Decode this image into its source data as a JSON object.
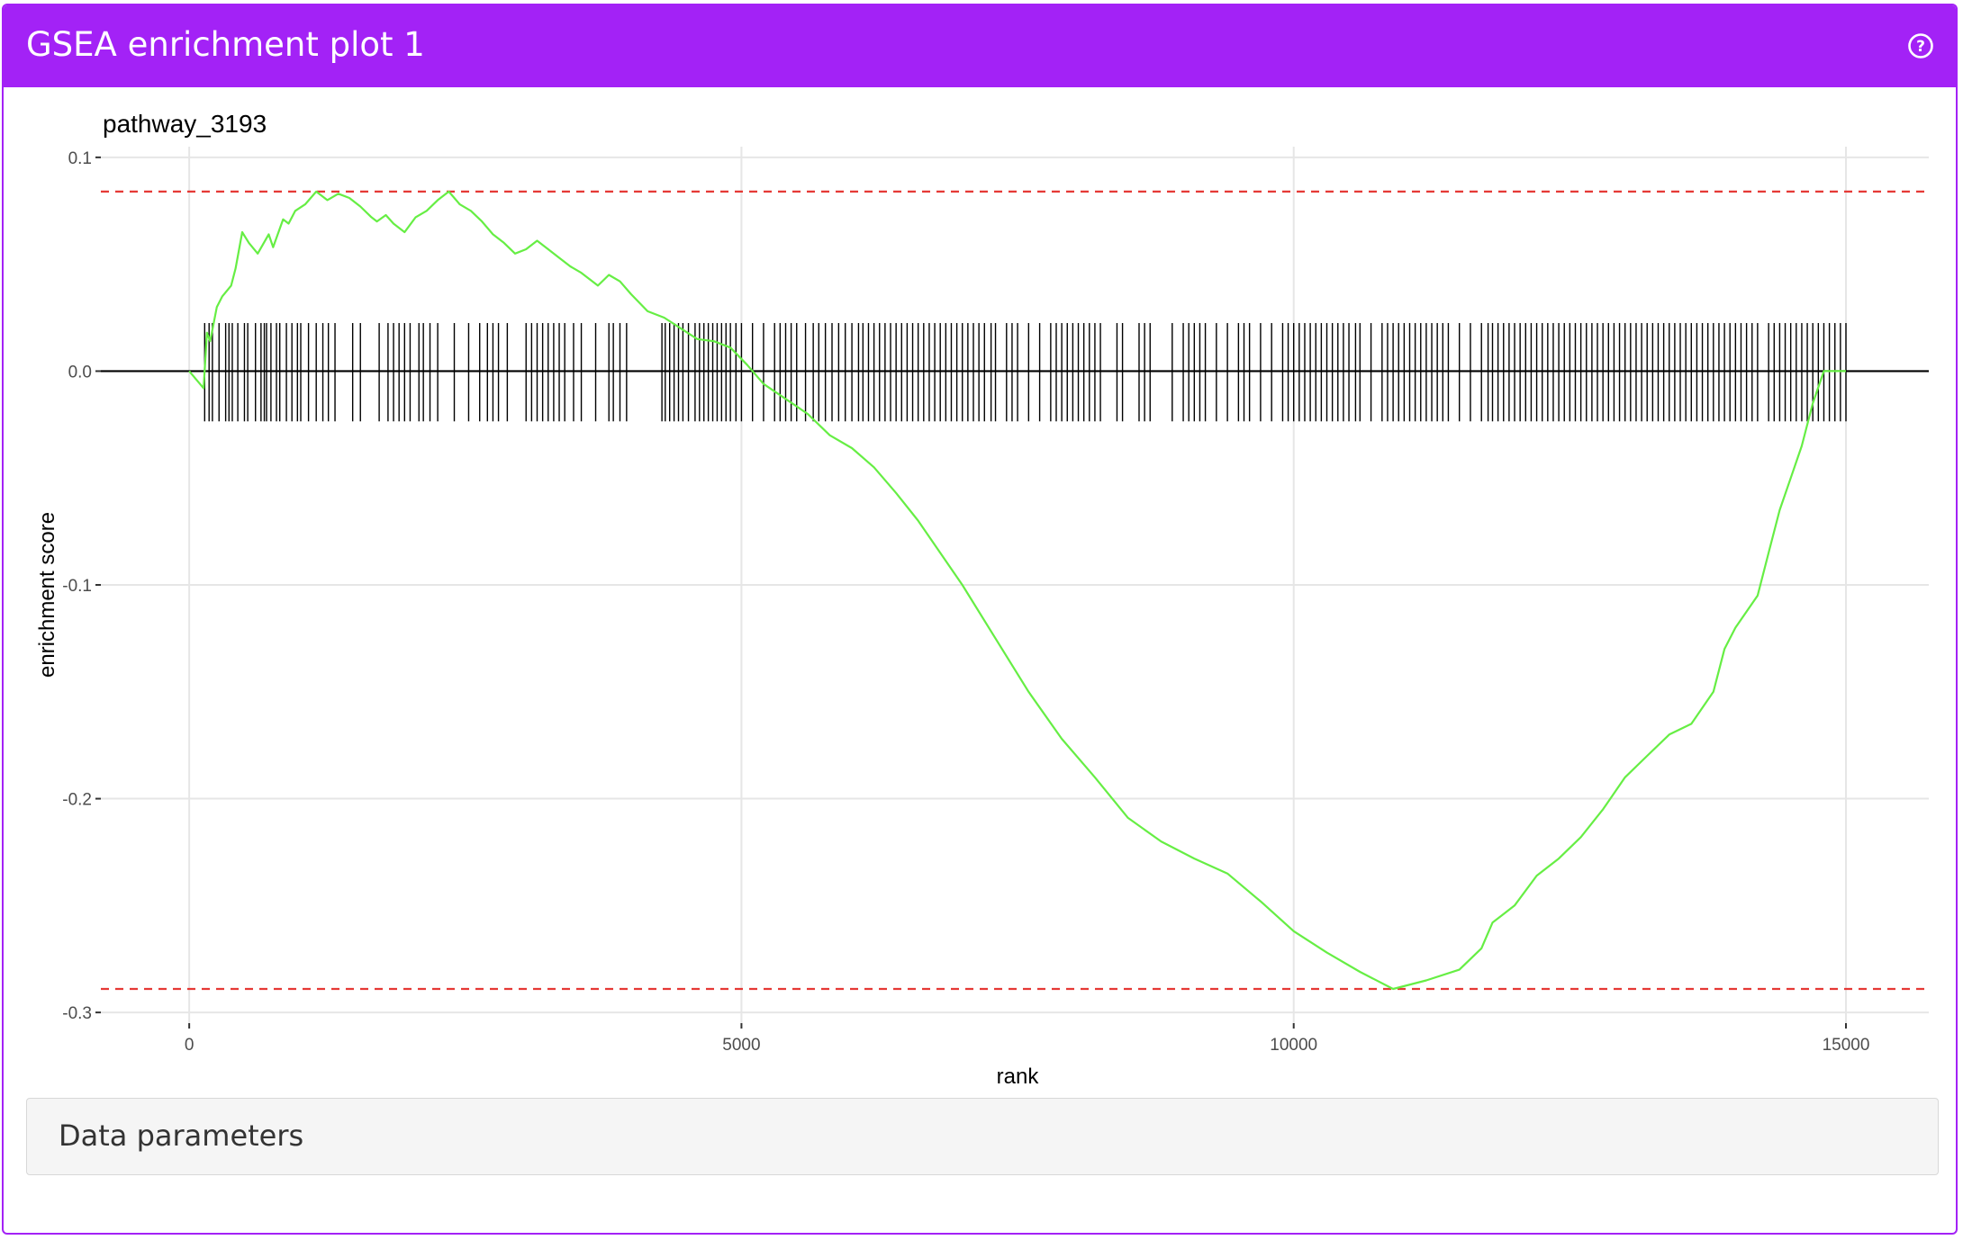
{
  "panel": {
    "title": "GSEA enrichment plot 1",
    "help_icon": "question-circle-icon",
    "accent_color": "#a322f6"
  },
  "data_parameters": {
    "label": "Data parameters"
  },
  "chart_data": {
    "type": "line",
    "title": "pathway_3193",
    "xlabel": "rank",
    "ylabel": "enrichment score",
    "xlim": [
      -800,
      15750
    ],
    "ylim": [
      -0.305,
      0.105
    ],
    "x_ticks": [
      0,
      5000,
      10000,
      15000
    ],
    "x_tick_labels": [
      "0",
      "5000",
      "10000",
      "15000"
    ],
    "y_ticks": [
      0.1,
      0.0,
      -0.1,
      -0.2,
      -0.3
    ],
    "y_tick_labels": [
      "0.1",
      "0.0",
      "-0.1",
      "-0.2",
      "-0.3"
    ],
    "grid": true,
    "series_color": "#66ee44",
    "max_es": 0.084,
    "min_es": -0.289,
    "threshold_line_color": "#e53935",
    "zero_line_color": "#000000",
    "running_es": {
      "x": [
        0,
        130,
        160,
        190,
        250,
        300,
        380,
        420,
        480,
        540,
        620,
        720,
        760,
        850,
        900,
        960,
        1050,
        1150,
        1250,
        1350,
        1450,
        1550,
        1650,
        1700,
        1780,
        1850,
        1950,
        2050,
        2150,
        2250,
        2350,
        2450,
        2550,
        2650,
        2750,
        2850,
        2950,
        3050,
        3150,
        3250,
        3350,
        3450,
        3550,
        3700,
        3800,
        3900,
        4000,
        4150,
        4300,
        4450,
        4600,
        4750,
        4900,
        5050,
        5200,
        5400,
        5600,
        5800,
        6000,
        6200,
        6400,
        6600,
        6800,
        7000,
        7300,
        7600,
        7900,
        8200,
        8500,
        8800,
        9100,
        9400,
        9700,
        10000,
        10300,
        10600,
        10900,
        11200,
        11500,
        11700,
        11800,
        12000,
        12200,
        12400,
        12600,
        12800,
        13000,
        13200,
        13400,
        13600,
        13800,
        13900,
        14000,
        14200,
        14300,
        14400,
        14500,
        14600,
        14700,
        14800,
        14850,
        14900,
        15000
      ],
      "y": [
        0.0,
        -0.008,
        0.018,
        0.014,
        0.03,
        0.035,
        0.04,
        0.048,
        0.065,
        0.06,
        0.055,
        0.064,
        0.058,
        0.071,
        0.069,
        0.075,
        0.078,
        0.084,
        0.08,
        0.083,
        0.081,
        0.077,
        0.072,
        0.07,
        0.073,
        0.069,
        0.065,
        0.072,
        0.075,
        0.08,
        0.084,
        0.078,
        0.075,
        0.07,
        0.064,
        0.06,
        0.055,
        0.057,
        0.061,
        0.057,
        0.053,
        0.049,
        0.046,
        0.04,
        0.045,
        0.042,
        0.036,
        0.028,
        0.025,
        0.02,
        0.015,
        0.014,
        0.011,
        0.003,
        -0.006,
        -0.013,
        -0.02,
        -0.03,
        -0.036,
        -0.045,
        -0.057,
        -0.07,
        -0.085,
        -0.1,
        -0.125,
        -0.15,
        -0.172,
        -0.19,
        -0.209,
        -0.22,
        -0.228,
        -0.235,
        -0.248,
        -0.262,
        -0.272,
        -0.281,
        -0.289,
        -0.285,
        -0.28,
        -0.27,
        -0.258,
        -0.25,
        -0.236,
        -0.228,
        -0.218,
        -0.205,
        -0.19,
        -0.18,
        -0.17,
        -0.165,
        -0.15,
        -0.13,
        -0.12,
        -0.105,
        -0.085,
        -0.065,
        -0.05,
        -0.035,
        -0.015,
        0.0,
        0.0,
        0.0,
        0.0
      ]
    },
    "hit_ranks": [
      140,
      180,
      210,
      270,
      330,
      360,
      390,
      440,
      500,
      530,
      600,
      650,
      680,
      700,
      740,
      790,
      820,
      880,
      930,
      980,
      1010,
      1080,
      1150,
      1210,
      1260,
      1320,
      1480,
      1550,
      1720,
      1800,
      1850,
      1900,
      1950,
      2000,
      2080,
      2120,
      2180,
      2250,
      2400,
      2530,
      2630,
      2700,
      2750,
      2800,
      2880,
      3050,
      3100,
      3150,
      3200,
      3250,
      3300,
      3350,
      3400,
      3480,
      3550,
      3680,
      3800,
      3840,
      3900,
      3960,
      4280,
      4310,
      4350,
      4390,
      4430,
      4470,
      4520,
      4580,
      4620,
      4660,
      4700,
      4740,
      4780,
      4820,
      4860,
      4900,
      4950,
      5000,
      5100,
      5200,
      5300,
      5350,
      5400,
      5450,
      5500,
      5580,
      5650,
      5700,
      5760,
      5820,
      5880,
      5940,
      6000,
      6060,
      6100,
      6150,
      6200,
      6250,
      6300,
      6350,
      6400,
      6450,
      6500,
      6550,
      6600,
      6650,
      6700,
      6750,
      6800,
      6850,
      6900,
      6950,
      7000,
      7050,
      7100,
      7150,
      7200,
      7260,
      7300,
      7400,
      7450,
      7500,
      7600,
      7700,
      7800,
      7850,
      7900,
      7950,
      8000,
      8050,
      8100,
      8150,
      8200,
      8250,
      8400,
      8450,
      8600,
      8650,
      8700,
      8900,
      9000,
      9050,
      9100,
      9150,
      9200,
      9300,
      9400,
      9500,
      9550,
      9600,
      9700,
      9800,
      9900,
      9950,
      10000,
      10050,
      10100,
      10150,
      10200,
      10250,
      10300,
      10350,
      10400,
      10450,
      10500,
      10560,
      10600,
      10700,
      10800,
      10850,
      10900,
      10950,
      11000,
      11050,
      11100,
      11150,
      11200,
      11250,
      11300,
      11350,
      11400,
      11500,
      11600,
      11700,
      11760,
      11800,
      11850,
      11900,
      11950,
      12000,
      12050,
      12100,
      12150,
      12200,
      12250,
      12300,
      12350,
      12400,
      12450,
      12500,
      12550,
      12600,
      12650,
      12700,
      12750,
      12800,
      12850,
      12900,
      12950,
      13000,
      13050,
      13100,
      13150,
      13200,
      13250,
      13300,
      13350,
      13400,
      13450,
      13500,
      13550,
      13600,
      13650,
      13700,
      13750,
      13800,
      13850,
      13900,
      13950,
      14000,
      14050,
      14100,
      14150,
      14200,
      14300,
      14350,
      14400,
      14450,
      14500,
      14550,
      14600,
      14650,
      14700,
      14750,
      14800,
      14850,
      14900,
      14950,
      15000
    ]
  }
}
